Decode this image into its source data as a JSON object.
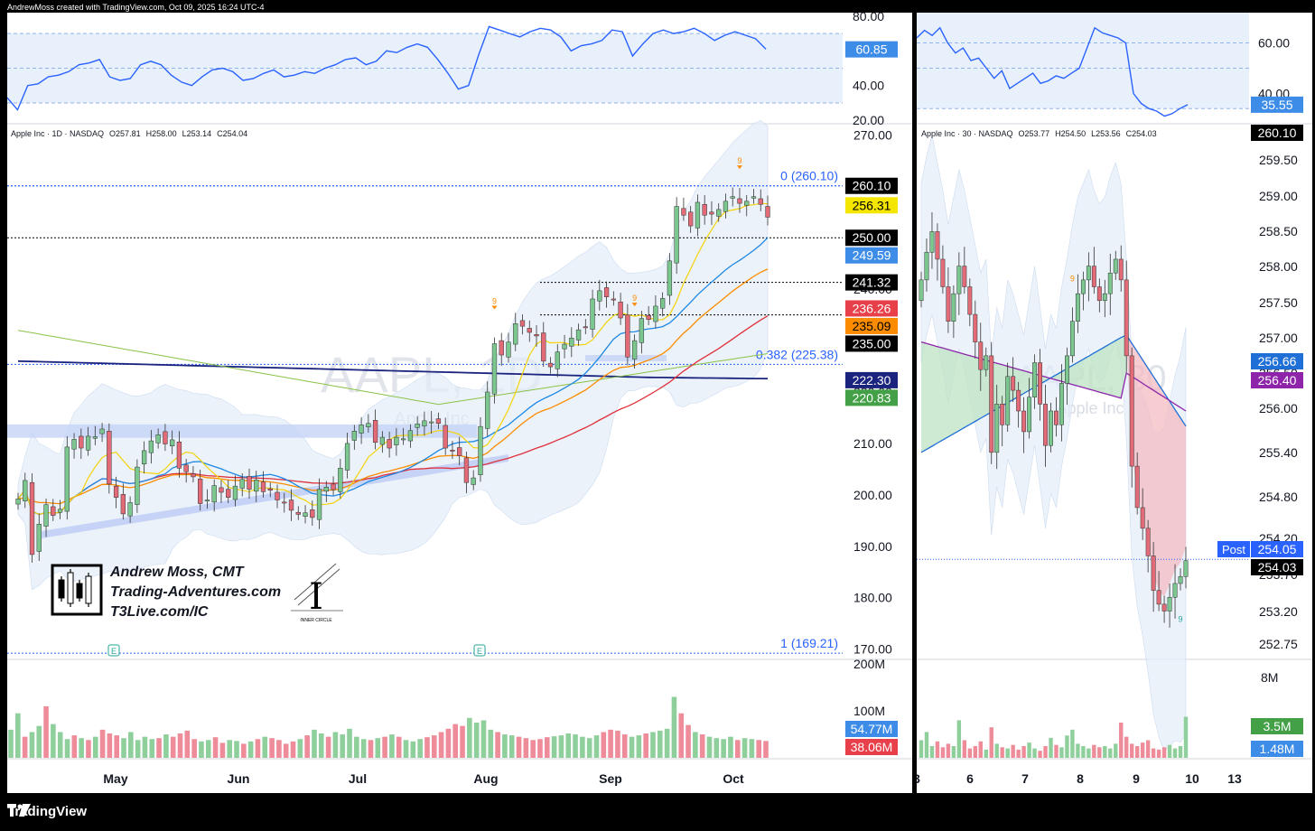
{
  "credit": "AndrewMoss created with TradingView.com, Oct 09, 2025 16:24 UTC-4",
  "footer": {
    "logo": "TradingView",
    "logo_icon": "tradingview-logo-icon"
  },
  "colors": {
    "up": "#7cc78f",
    "down": "#e36b78",
    "rsi": "#2962ff",
    "sma10": "#f5d30a",
    "sma20": "#1e88e5",
    "sma50": "#e0303a",
    "sma100": "#8bc34a",
    "sma200": "#1a237e",
    "ema": "#fb8c00",
    "vol_up": "#8ecf9b",
    "vol_down": "#ee8c99",
    "label_blue": "#2962ff",
    "fib": "#2962ff"
  },
  "chart_data": [
    {
      "type": "candlestick",
      "title": "Apple Inc · 1D · NASDAQ",
      "ohlc_text": {
        "O": "257.81",
        "H": "258.00",
        "L": "253.14",
        "C": "254.04"
      },
      "watermark": "AAPL, 1D",
      "watermark_sub": "Apple Inc",
      "x_labels": [
        "May",
        "Jun",
        "Jul",
        "Aug",
        "Sep",
        "Oct"
      ],
      "y_ticks": [
        "270.00",
        "260.00",
        "250.00",
        "240.00",
        "230.00",
        "220.00",
        "210.00",
        "200.00",
        "190.00",
        "180.00",
        "170.00"
      ],
      "ylim": [
        168,
        272
      ],
      "close_series": [
        199.2,
        202.8,
        188.4,
        194.3,
        198.1,
        196.0,
        197.2,
        209.3,
        210.8,
        209.1,
        211.4,
        211.3,
        212.8,
        202.1,
        199.5,
        196.3,
        198.5,
        205.4,
        208.6,
        210.5,
        211.7,
        209.9,
        210.7,
        205.2,
        204.5,
        203.5,
        198.3,
        199.0,
        201.8,
        200.5,
        199.5,
        201.7,
        203.0,
        201.1,
        202.9,
        200.6,
        200.9,
        199.0,
        198.4,
        197.0,
        196.2,
        196.5,
        195.6,
        201.1,
        201.5,
        201.0,
        205.2,
        210.0,
        212.4,
        213.6,
        213.9,
        210.2,
        211.2,
        209.1,
        211.2,
        210.9,
        212.5,
        213.8,
        214.4,
        214.2,
        213.9,
        209.1,
        208.6,
        207.6,
        202.4,
        203.3,
        213.3,
        220.0,
        229.4,
        227.2,
        229.7,
        233.3,
        232.8,
        231.6,
        230.9,
        226.0,
        224.9,
        227.8,
        229.3,
        230.5,
        232.1,
        232.6,
        238.1,
        239.7,
        238.5,
        237.9,
        234.4,
        226.8,
        230.0,
        234.3,
        234.1,
        236.7,
        238.2,
        245.5,
        256.1,
        254.4,
        252.3,
        256.9,
        254.4,
        254.6,
        255.5,
        257.1,
        258.0,
        256.7,
        257.1,
        258.0,
        256.5,
        254.0
      ],
      "sma_values": {
        "sma10": "256.31",
        "sma20": "249.59",
        "ema": "235.09",
        "sma50": "236.26",
        "sma200": "222.30",
        "sma100": "220.83"
      },
      "fib_levels": [
        {
          "label": "0 (260.10)",
          "value": 260.1
        },
        {
          "label": "0.382 (225.38)",
          "value": 225.38
        },
        {
          "label": "1 (169.21)",
          "value": 169.21
        }
      ],
      "levels": [
        {
          "label": "260.10",
          "value": 260.1,
          "style": "blue-dotted"
        },
        {
          "label": "250.00",
          "value": 250.0,
          "style": "black-dotted"
        },
        {
          "label": "241.32",
          "value": 241.32,
          "style": "black-dotted"
        },
        {
          "label": "235.00",
          "value": 235.0,
          "style": "black-dotted"
        }
      ],
      "price_labels": [
        {
          "text": "260.10",
          "value": 260.1,
          "bg": "#000000",
          "fg": "#ffffff"
        },
        {
          "text": "256.31",
          "value": 256.31,
          "bg": "#f5e600",
          "fg": "#000000"
        },
        {
          "text": "250.00",
          "value": 250.0,
          "bg": "#000000",
          "fg": "#ffffff"
        },
        {
          "text": "249.59",
          "value": 249.59,
          "bg": "#3d8ce8",
          "fg": "#ffffff"
        },
        {
          "text": "241.32",
          "value": 241.32,
          "bg": "#000000",
          "fg": "#ffffff"
        },
        {
          "text": "236.26",
          "value": 236.26,
          "bg": "#e8404a",
          "fg": "#ffffff"
        },
        {
          "text": "235.09",
          "value": 235.09,
          "bg": "#fb8c00",
          "fg": "#000000"
        },
        {
          "text": "235.00",
          "value": 235.0,
          "bg": "#000000",
          "fg": "#ffffff"
        },
        {
          "text": "222.30",
          "value": 222.3,
          "bg": "#1a237e",
          "fg": "#ffffff"
        },
        {
          "text": "220.83",
          "value": 220.83,
          "bg": "#43a047",
          "fg": "#ffffff"
        }
      ],
      "markers": [
        {
          "text": "9",
          "bar": 103
        },
        {
          "text": "9",
          "bar": 68
        },
        {
          "text": "9",
          "bar": 88
        }
      ],
      "earnings_marker": "E",
      "rsi": {
        "y_ticks": [
          "80.00",
          "60.00",
          "40.00",
          "20.00"
        ],
        "ylim": [
          18,
          82
        ],
        "bands": [
          70,
          50,
          30
        ],
        "current": "60.85",
        "values": [
          33,
          26,
          40,
          41,
          45,
          46,
          48,
          52,
          53,
          55,
          45,
          43,
          44,
          52,
          54,
          52,
          46,
          42,
          40,
          45,
          49,
          50,
          48,
          43,
          44,
          47,
          49,
          45,
          46,
          48,
          47,
          50,
          52,
          55,
          56,
          52,
          54,
          60,
          59,
          62,
          64,
          62,
          55,
          47,
          38,
          40,
          58,
          74,
          72,
          70,
          68,
          71,
          73,
          72,
          68,
          60,
          63,
          64,
          66,
          72,
          71,
          57,
          64,
          70,
          72,
          70,
          71,
          73,
          70,
          66,
          69,
          71,
          69,
          67,
          61
        ]
      },
      "volume": {
        "y_ticks": [
          "200M",
          "100M"
        ],
        "labels": [
          {
            "text": "54.77M",
            "bg": "#3d8ce8"
          },
          {
            "text": "38.06M",
            "bg": "#e8404a"
          }
        ],
        "values": [
          60,
          95,
          45,
          55,
          68,
          110,
          72,
          55,
          40,
          48,
          42,
          38,
          45,
          60,
          52,
          48,
          42,
          55,
          38,
          45,
          40,
          42,
          50,
          45,
          52,
          58,
          40,
          35,
          38,
          44,
          32,
          38,
          36,
          30,
          35,
          40,
          45,
          42,
          38,
          30,
          35,
          40,
          48,
          60,
          52,
          45,
          55,
          50,
          62,
          45,
          40,
          38,
          42,
          45,
          50,
          45,
          38,
          35,
          40,
          44,
          48,
          55,
          62,
          72,
          68,
          85,
          75,
          80,
          60,
          55,
          50,
          48,
          45,
          42,
          38,
          40,
          44,
          46,
          48,
          52,
          50,
          45,
          42,
          48,
          55,
          60,
          58,
          50,
          45,
          48,
          52,
          55,
          58,
          62,
          130,
          95,
          70,
          55,
          50,
          45,
          42,
          40,
          45,
          38,
          42,
          40,
          38,
          36
        ]
      }
    },
    {
      "type": "candlestick",
      "title": "Apple Inc · 30 · NASDAQ",
      "ohlc_text": {
        "O": "253.77",
        "H": "254.50",
        "L": "253.56",
        "C": "254.03"
      },
      "watermark": "AAPL, 30",
      "watermark_sub": "Apple Inc",
      "x_labels": [
        "3",
        "6",
        "7",
        "8",
        "9",
        "10",
        "13"
      ],
      "y_ticks": [
        "259.50",
        "259.00",
        "258.50",
        "258.00",
        "257.50",
        "257.00",
        "256.50",
        "256.00",
        "255.40",
        "254.80",
        "254.20",
        "253.70",
        "253.20",
        "252.75"
      ],
      "ylim": [
        252.6,
        260.35
      ],
      "close_series": [
        258.1,
        258.5,
        258.8,
        258.4,
        258.0,
        257.5,
        257.9,
        258.3,
        258.0,
        257.6,
        257.2,
        256.8,
        257.0,
        255.6,
        256.3,
        256.0,
        256.7,
        256.5,
        256.2,
        255.9,
        256.4,
        256.9,
        256.3,
        255.7,
        256.2,
        256.0,
        256.6,
        257.0,
        257.5,
        257.9,
        258.1,
        258.3,
        258.0,
        257.8,
        257.9,
        258.2,
        258.4,
        258.1,
        257.0,
        255.4,
        254.8,
        254.5,
        254.1,
        253.6,
        253.4,
        253.3,
        253.5,
        253.7,
        253.8,
        254.03
      ],
      "current_level": {
        "value": 254.05
      },
      "price_labels": [
        {
          "text": "260.10",
          "value": 260.1,
          "bg": "#000000",
          "fg": "#ffffff"
        },
        {
          "text": "256.66",
          "value": 256.66,
          "bg": "#1e6fd6",
          "fg": "#ffffff"
        },
        {
          "text": "256.40",
          "value": 256.4,
          "bg": "#8e24aa",
          "fg": "#ffffff"
        },
        {
          "text": "254.05",
          "value": 254.05,
          "bg": "#2962ff",
          "fg": "#ffffff",
          "tag": "Post"
        },
        {
          "text": "254.03",
          "value": 254.03,
          "bg": "#000000",
          "fg": "#ffffff"
        }
      ],
      "markers": [
        {
          "text": "9",
          "bar": 28
        },
        {
          "text": "9",
          "bar": 48
        }
      ],
      "rsi": {
        "y_ticks": [
          "60.00",
          "40.00"
        ],
        "ylim": [
          28,
          72
        ],
        "bands": [
          60,
          50,
          34
        ],
        "current": "35.55",
        "values": [
          62,
          65,
          63,
          66,
          60,
          56,
          58,
          53,
          54,
          50,
          46,
          49,
          42,
          44,
          46,
          48,
          44,
          45,
          47,
          46,
          48,
          50,
          58,
          66,
          64,
          63,
          62,
          60,
          40,
          36,
          34,
          33,
          31,
          32,
          34,
          35.55
        ]
      },
      "volume": {
        "y_ticks": [
          "8M"
        ],
        "labels": [
          {
            "text": "3.5M",
            "bg": "#43a047"
          },
          {
            "text": "1.48M",
            "bg": "#3d8ce8"
          }
        ],
        "values": [
          1.5,
          2.2,
          1.0,
          1.4,
          0.9,
          1.2,
          1.0,
          3.2,
          1.5,
          0.8,
          1.0,
          1.4,
          0.7,
          2.6,
          1.2,
          0.9,
          0.8,
          1.1,
          0.7,
          1.0,
          1.3,
          0.8,
          0.6,
          1.0,
          1.7,
          1.1,
          0.9,
          1.9,
          2.4,
          1.2,
          1.0,
          0.8,
          1.1,
          0.9,
          1.0,
          0.8,
          1.2,
          3.0,
          1.8,
          1.2,
          1.0,
          1.3,
          1.5,
          0.8,
          0.7,
          0.9,
          1.1,
          0.8,
          1.0,
          3.5
        ]
      }
    }
  ],
  "branding": {
    "name": "Andrew Moss, CMT",
    "site": "Trading-Adventures.com",
    "link": "T3Live.com/IC",
    "badge_text": "INNER CIRCLE",
    "logo_icon": "candlestick-logo-icon",
    "badge_icon": "inner-circle-logo-icon"
  }
}
